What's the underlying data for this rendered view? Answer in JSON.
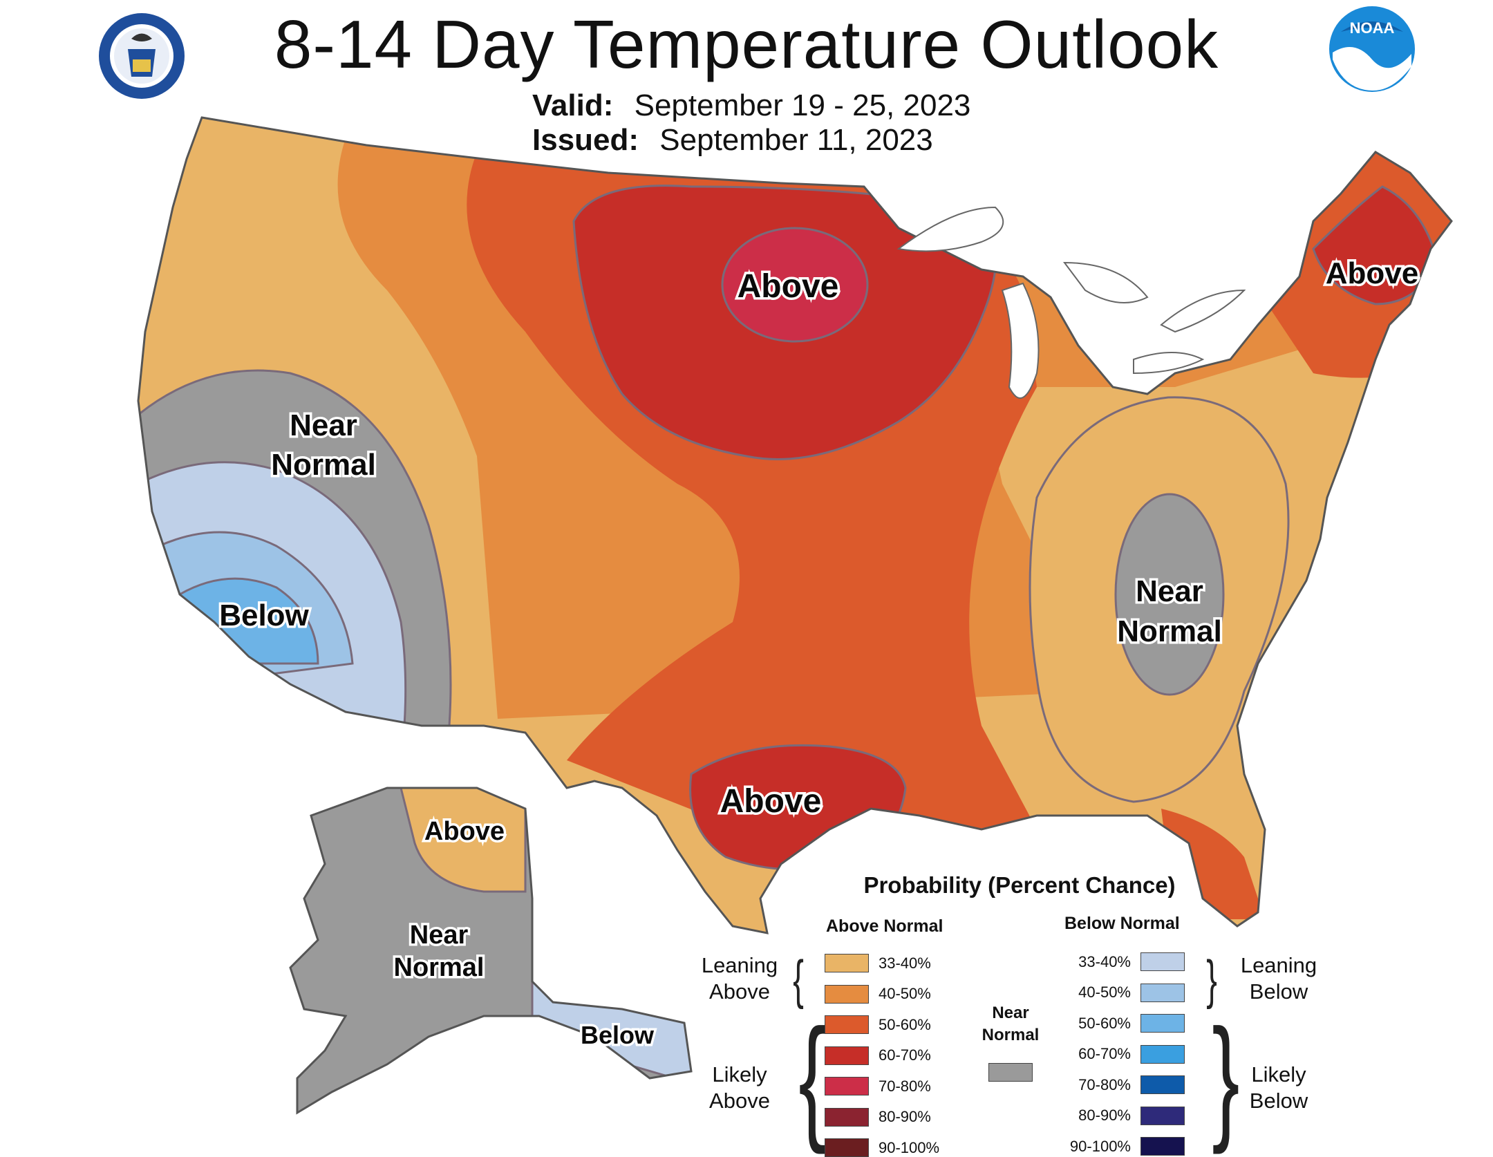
{
  "header": {
    "title": "8-14 Day Temperature Outlook",
    "valid_label": "Valid:",
    "valid_value": "September 19 - 25, 2023",
    "issued_label": "Issued:",
    "issued_value": "September 11, 2023"
  },
  "logos": {
    "left_icon": "commerce-seal-icon",
    "right_icon": "noaa-logo-icon",
    "right_text": "NOAA"
  },
  "map": {
    "labels": {
      "north_plains": "Above",
      "new_england": "Above",
      "texas": "Above",
      "alaska_north": "Above",
      "california_near_1": "Near",
      "california_near_2": "Normal",
      "california_below": "Below",
      "southeast_near_1": "Near",
      "southeast_near_2": "Normal",
      "alaska_near_1": "Near",
      "alaska_near_2": "Normal",
      "alaska_below": "Below"
    }
  },
  "legend": {
    "title": "Probability (Percent Chance)",
    "above_header": "Above Normal",
    "below_header": "Below Normal",
    "near_header_1": "Near",
    "near_header_2": "Normal",
    "leaning_above_1": "Leaning",
    "leaning_above_2": "Above",
    "likely_above_1": "Likely",
    "likely_above_2": "Above",
    "leaning_below_1": "Leaning",
    "leaning_below_2": "Below",
    "likely_below_1": "Likely",
    "likely_below_2": "Below",
    "above": [
      {
        "range": "33-40%",
        "color": "#E9B466"
      },
      {
        "range": "40-50%",
        "color": "#E58C40"
      },
      {
        "range": "50-60%",
        "color": "#DC5A2C"
      },
      {
        "range": "60-70%",
        "color": "#C62E28"
      },
      {
        "range": "70-80%",
        "color": "#CC2E48"
      },
      {
        "range": "80-90%",
        "color": "#8B2330"
      },
      {
        "range": "90-100%",
        "color": "#6B1E20"
      }
    ],
    "near_color": "#9A9A9A",
    "below": [
      {
        "range": "33-40%",
        "color": "#BFD0E8"
      },
      {
        "range": "40-50%",
        "color": "#9DC3E6"
      },
      {
        "range": "50-60%",
        "color": "#6DB3E6"
      },
      {
        "range": "60-70%",
        "color": "#3A9FE0"
      },
      {
        "range": "70-80%",
        "color": "#0E5BAA"
      },
      {
        "range": "80-90%",
        "color": "#2E2A7A"
      },
      {
        "range": "90-100%",
        "color": "#15124F"
      }
    ]
  }
}
